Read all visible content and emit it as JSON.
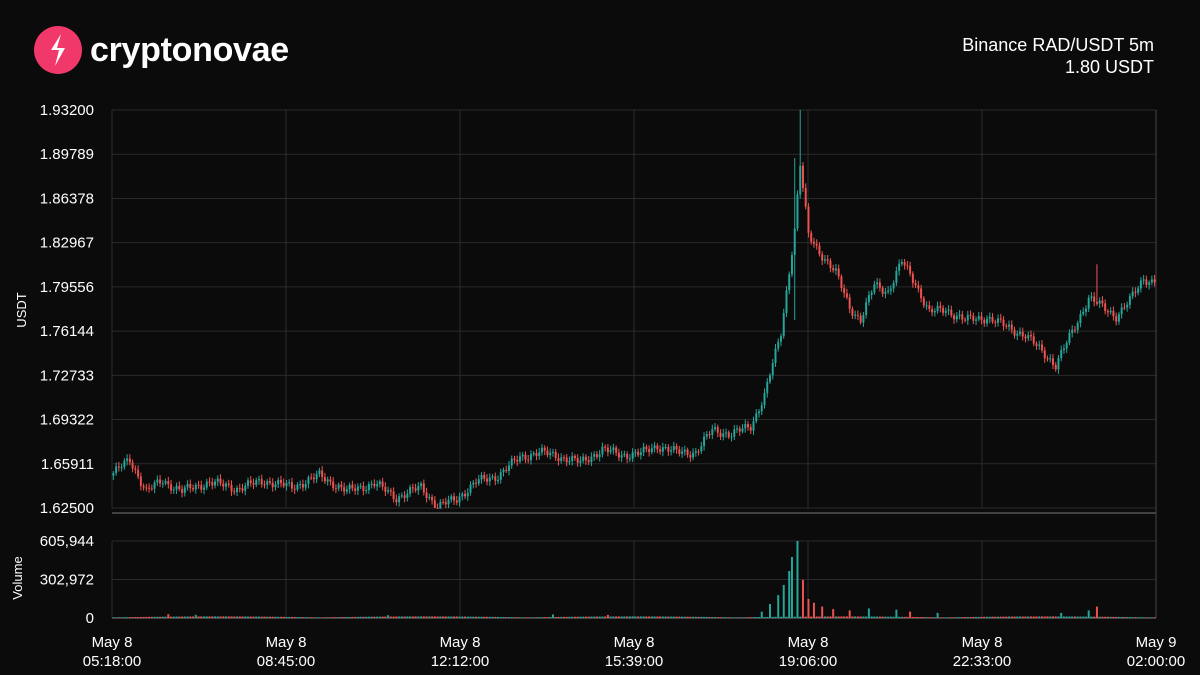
{
  "brand": {
    "name": "cryptonovae",
    "logo_icon": "cryptonovae-logo-icon",
    "logo_color": "#f0386b"
  },
  "header": {
    "exchange_pair": "Binance RAD/USDT 5m",
    "price": "1.80 USDT"
  },
  "colors": {
    "up": "#26a69a",
    "down": "#ef5350",
    "grid": "#2b2b2b",
    "background": "#0b0b0b"
  },
  "chart_data": {
    "type": "candlestick",
    "price_axis": {
      "label": "USDT",
      "ylim": [
        1.625,
        1.932
      ],
      "ticks": [
        "1.93200",
        "1.89789",
        "1.86378",
        "1.82967",
        "1.79556",
        "1.76144",
        "1.72733",
        "1.69322",
        "1.65911",
        "1.62500"
      ]
    },
    "volume_axis": {
      "label": "Volume",
      "ylim": [
        0,
        605944
      ],
      "ticks": [
        "605,944",
        "302,972",
        "0"
      ]
    },
    "x_axis": {
      "ticks": [
        [
          "May  8",
          "05:18:00"
        ],
        [
          "May  8",
          "08:45:00"
        ],
        [
          "May  8",
          "12:12:00"
        ],
        [
          "May  8",
          "15:39:00"
        ],
        [
          "May  8",
          "19:06:00"
        ],
        [
          "May  8",
          "22:33:00"
        ],
        [
          "May  9",
          "02:00:00"
        ]
      ]
    },
    "key_points": [
      [
        0,
        1.652
      ],
      [
        6,
        1.662
      ],
      [
        12,
        1.638
      ],
      [
        18,
        1.646
      ],
      [
        25,
        1.638
      ],
      [
        35,
        1.645
      ],
      [
        45,
        1.64
      ],
      [
        55,
        1.646
      ],
      [
        65,
        1.641
      ],
      [
        75,
        1.65
      ],
      [
        85,
        1.638
      ],
      [
        95,
        1.644
      ],
      [
        103,
        1.633
      ],
      [
        112,
        1.641
      ],
      [
        118,
        1.626
      ],
      [
        125,
        1.632
      ],
      [
        132,
        1.645
      ],
      [
        140,
        1.65
      ],
      [
        148,
        1.664
      ],
      [
        155,
        1.668
      ],
      [
        162,
        1.665
      ],
      [
        170,
        1.66
      ],
      [
        178,
        1.67
      ],
      [
        185,
        1.666
      ],
      [
        192,
        1.667
      ],
      [
        198,
        1.673
      ],
      [
        205,
        1.668
      ],
      [
        212,
        1.668
      ],
      [
        218,
        1.685
      ],
      [
        225,
        1.682
      ],
      [
        232,
        1.688
      ],
      [
        237,
        1.712
      ],
      [
        243,
        1.76
      ],
      [
        248,
        1.84
      ],
      [
        250,
        1.89
      ],
      [
        253,
        1.835
      ],
      [
        258,
        1.82
      ],
      [
        263,
        1.806
      ],
      [
        268,
        1.78
      ],
      [
        272,
        1.77
      ],
      [
        277,
        1.797
      ],
      [
        282,
        1.792
      ],
      [
        287,
        1.815
      ],
      [
        292,
        1.798
      ],
      [
        297,
        1.776
      ],
      [
        303,
        1.778
      ],
      [
        310,
        1.77
      ],
      [
        318,
        1.772
      ],
      [
        325,
        1.765
      ],
      [
        332,
        1.758
      ],
      [
        340,
        1.742
      ],
      [
        343,
        1.735
      ],
      [
        346,
        1.748
      ],
      [
        350,
        1.765
      ],
      [
        355,
        1.787
      ],
      [
        360,
        1.78
      ],
      [
        365,
        1.773
      ],
      [
        370,
        1.785
      ],
      [
        375,
        1.802
      ],
      [
        378,
        1.8
      ]
    ],
    "spikes": [
      {
        "index": 250,
        "high": 1.932,
        "low": 1.88
      },
      {
        "index": 248,
        "high": 1.895,
        "low": 1.77
      },
      {
        "index": 358,
        "high": 1.813,
        "low": 1.785
      }
    ],
    "volume_profile": {
      "base": 5000,
      "peaks": [
        {
          "index": 247,
          "value": 480000
        },
        {
          "index": 249,
          "value": 605944
        },
        {
          "index": 246,
          "value": 370000
        },
        {
          "index": 244,
          "value": 260000
        },
        {
          "index": 242,
          "value": 180000
        },
        {
          "index": 251,
          "value": 300000
        },
        {
          "index": 253,
          "value": 150000
        },
        {
          "index": 255,
          "value": 120000
        },
        {
          "index": 239,
          "value": 110000
        },
        {
          "index": 236,
          "value": 50000
        },
        {
          "index": 258,
          "value": 90000
        },
        {
          "index": 262,
          "value": 70000
        },
        {
          "index": 268,
          "value": 60000
        },
        {
          "index": 275,
          "value": 75000
        },
        {
          "index": 285,
          "value": 65000
        },
        {
          "index": 290,
          "value": 50000
        },
        {
          "index": 300,
          "value": 40000
        },
        {
          "index": 345,
          "value": 40000
        },
        {
          "index": 355,
          "value": 60000
        },
        {
          "index": 358,
          "value": 90000
        },
        {
          "index": 160,
          "value": 28000
        },
        {
          "index": 180,
          "value": 25000
        },
        {
          "index": 20,
          "value": 30000
        },
        {
          "index": 30,
          "value": 25000
        },
        {
          "index": 100,
          "value": 22000
        }
      ]
    },
    "candle_count": 380
  }
}
